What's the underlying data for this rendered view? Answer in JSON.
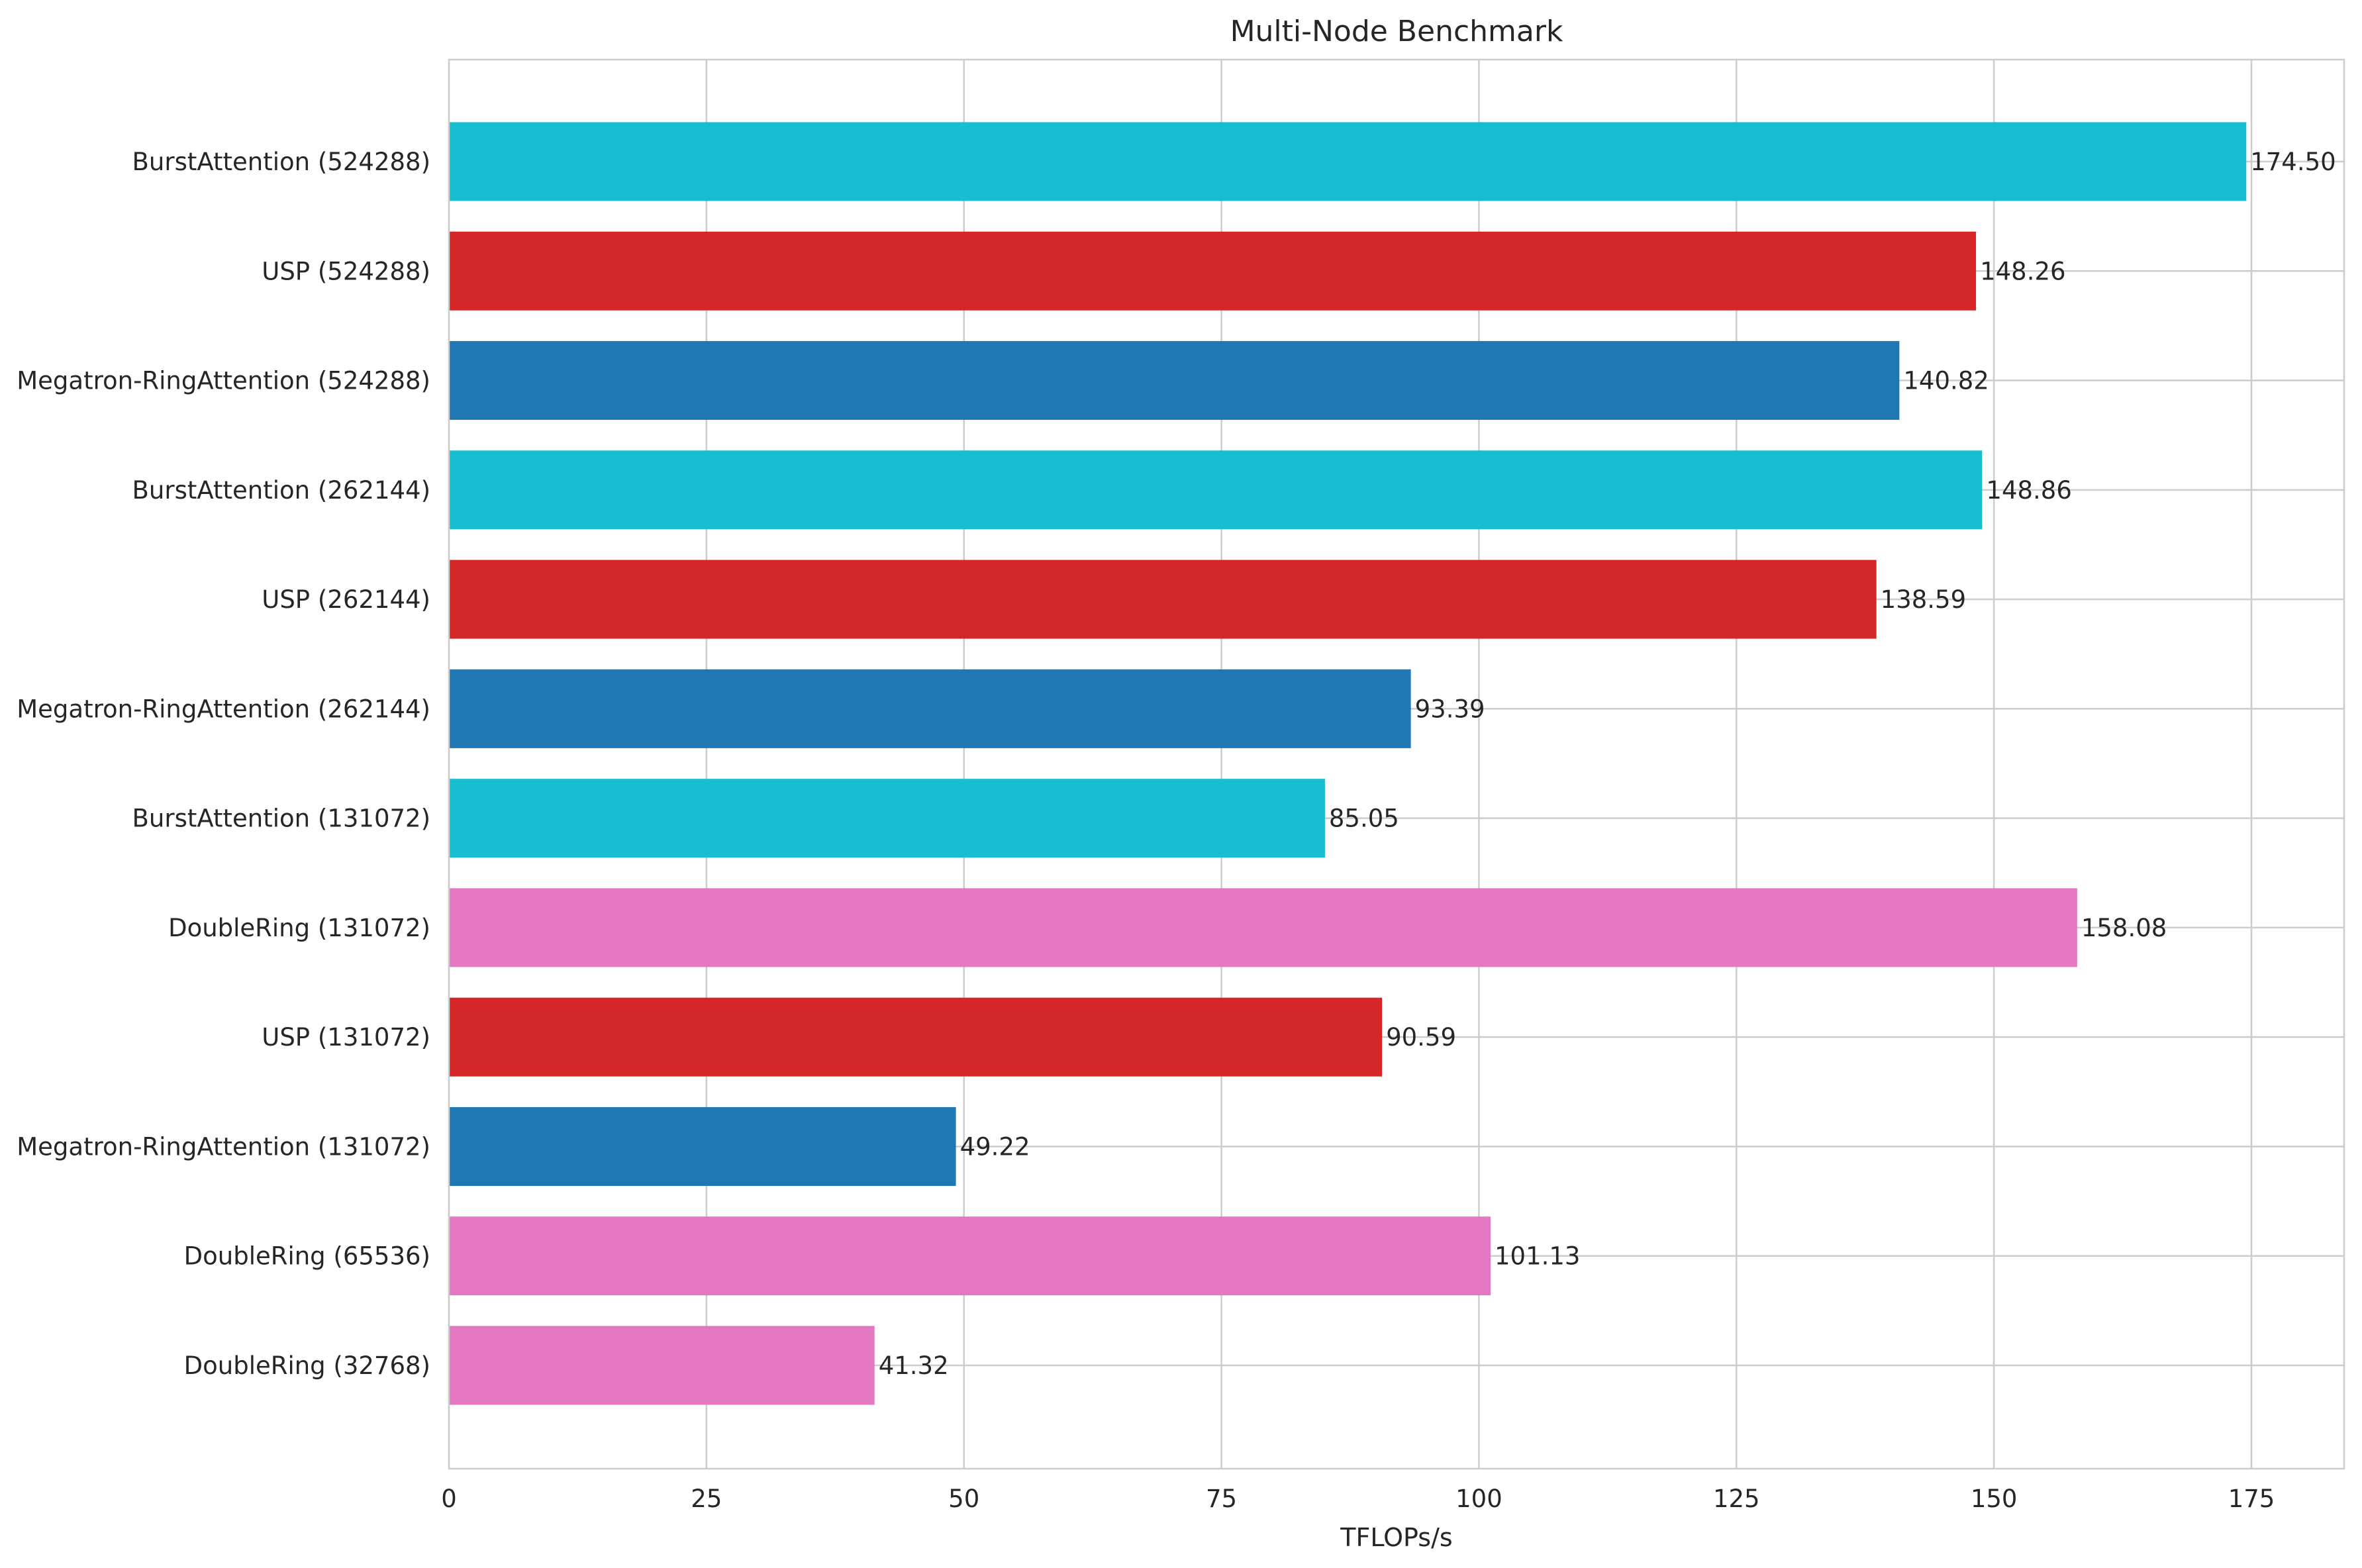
{
  "chart_data": {
    "type": "bar",
    "orientation": "horizontal",
    "title": "Multi-Node Benchmark",
    "xlabel": "TFLOPs/s",
    "ylabel": "",
    "xlim": [
      0,
      184
    ],
    "xticks": [
      0,
      25,
      50,
      75,
      100,
      125,
      150,
      175
    ],
    "grid": true,
    "categories": [
      "BurstAttention (524288)",
      "USP (524288)",
      "Megatron-RingAttention (524288)",
      "BurstAttention (262144)",
      "USP (262144)",
      "Megatron-RingAttention (262144)",
      "BurstAttention (131072)",
      "DoubleRing (131072)",
      "USP (131072)",
      "Megatron-RingAttention (131072)",
      "DoubleRing (65536)",
      "DoubleRing (32768)"
    ],
    "values": [
      174.5,
      148.26,
      140.82,
      148.86,
      138.59,
      93.39,
      85.05,
      158.08,
      90.59,
      49.22,
      101.13,
      41.32
    ],
    "value_labels": [
      "174.50",
      "148.26",
      "140.82",
      "148.86",
      "138.59",
      "93.39",
      "85.05",
      "158.08",
      "90.59",
      "49.22",
      "101.13",
      "41.32"
    ],
    "bar_colors": [
      "#17becf",
      "#d62728",
      "#1f77b4",
      "#17becf",
      "#d62728",
      "#1f77b4",
      "#17becf",
      "#e377c2",
      "#d62728",
      "#1f77b4",
      "#e377c2",
      "#e377c2"
    ]
  }
}
